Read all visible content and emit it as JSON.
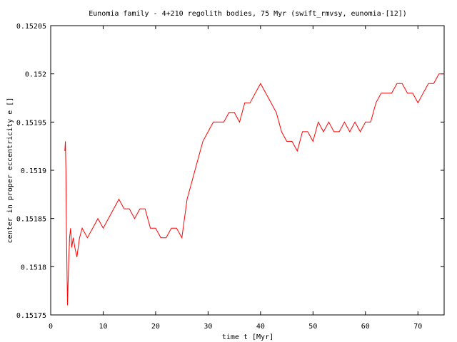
{
  "chart_data": {
    "type": "line",
    "title": "Eunomia family - 4+210 regolith bodies, 75 Myr (swift_rmvsy, eunomia-[12])",
    "xlabel": "time t [Myr]",
    "ylabel": "center in proper eccentricity e []",
    "xlim": [
      0,
      75
    ],
    "ylim": [
      0.15175,
      0.15205
    ],
    "xticks": [
      0,
      10,
      20,
      30,
      40,
      50,
      60,
      70
    ],
    "xtick_labels": [
      "0",
      "10",
      "20",
      "30",
      "40",
      "50",
      "60",
      "70"
    ],
    "yticks": [
      0.15175,
      0.1518,
      0.15185,
      0.1519,
      0.15195,
      0.152,
      0.15205
    ],
    "ytick_labels": [
      "0.15175",
      "0.1518",
      "0.15185",
      "0.1519",
      "0.15195",
      "0.152",
      "0.15205"
    ],
    "grid": false,
    "line_color": "#ff0000",
    "series": [
      {
        "x": [
          2.7,
          2.8,
          2.9,
          3.0,
          3.2,
          3.4,
          3.6,
          3.8,
          4.0,
          4.3,
          4.6,
          5.0,
          5.5,
          6.0,
          7,
          8,
          9,
          10,
          11,
          12,
          13,
          14,
          15,
          16,
          17,
          18,
          19,
          20,
          21,
          22,
          23,
          24,
          25,
          26,
          27,
          28,
          29,
          30,
          31,
          32,
          33,
          34,
          35,
          36,
          37,
          38,
          39,
          40,
          41,
          42,
          43,
          44,
          45,
          46,
          47,
          48,
          49,
          50,
          51,
          52,
          53,
          54,
          55,
          56,
          57,
          58,
          59,
          60,
          61,
          62,
          63,
          64,
          65,
          66,
          67,
          68,
          69,
          70,
          71,
          72,
          73,
          74,
          75
        ],
        "y": [
          0.15192,
          0.15193,
          0.1519,
          0.15184,
          0.15176,
          0.1518,
          0.15183,
          0.15184,
          0.15182,
          0.15183,
          0.15182,
          0.15181,
          0.15183,
          0.15184,
          0.15183,
          0.15184,
          0.15185,
          0.15184,
          0.15185,
          0.15186,
          0.15187,
          0.15186,
          0.15186,
          0.15185,
          0.15186,
          0.15186,
          0.15184,
          0.15184,
          0.15183,
          0.15183,
          0.15184,
          0.15184,
          0.15183,
          0.15187,
          0.15189,
          0.15191,
          0.15193,
          0.15194,
          0.15195,
          0.15195,
          0.15195,
          0.15196,
          0.15196,
          0.15195,
          0.15197,
          0.15197,
          0.15198,
          0.15199,
          0.15198,
          0.15197,
          0.15196,
          0.15194,
          0.15193,
          0.15193,
          0.15192,
          0.15194,
          0.15194,
          0.15193,
          0.15195,
          0.15194,
          0.15195,
          0.15194,
          0.15194,
          0.15195,
          0.15194,
          0.15195,
          0.15194,
          0.15195,
          0.15195,
          0.15197,
          0.15198,
          0.15198,
          0.15198,
          0.15199,
          0.15199,
          0.15198,
          0.15198,
          0.15197,
          0.15198,
          0.15199,
          0.15199,
          0.152,
          0.152
        ]
      }
    ]
  }
}
